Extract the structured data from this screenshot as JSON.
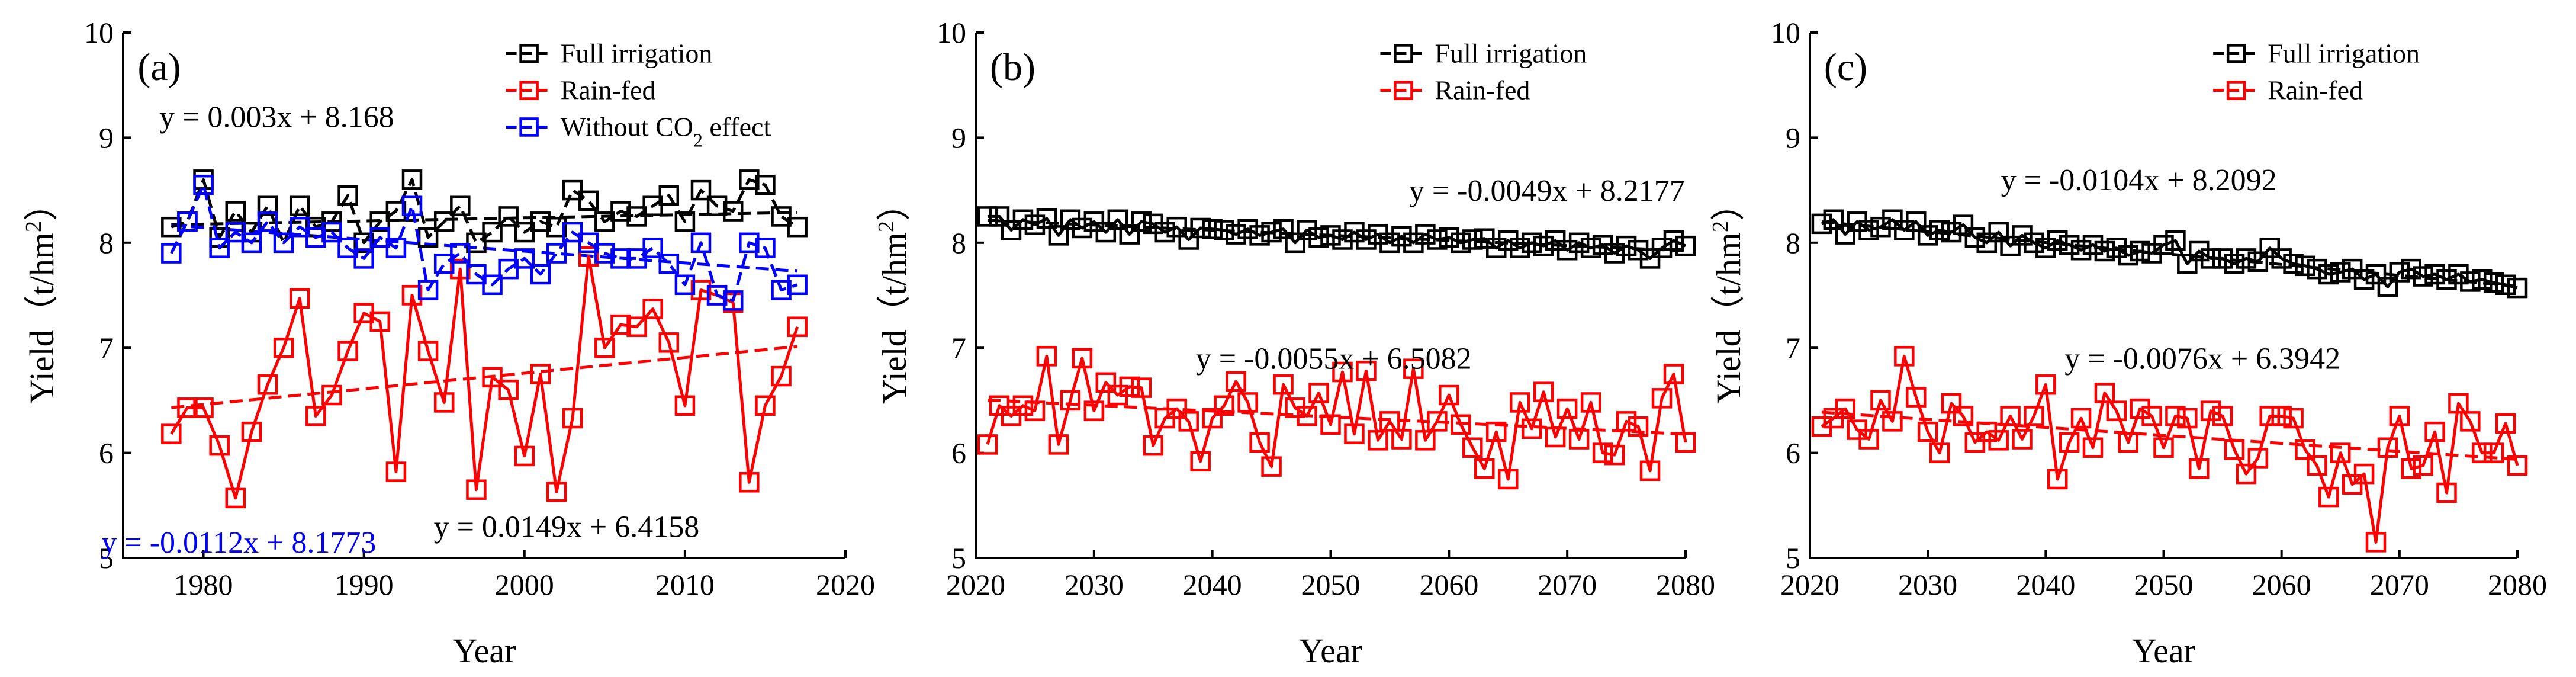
{
  "chart_data": [
    {
      "type": "line",
      "panel_label": "(a)",
      "xlabel": "Year",
      "ylabel": "Yield",
      "ylabel_unit_prefix": "（t/hm",
      "ylabel_unit_sup": "2",
      "ylabel_unit_suffix": "）",
      "xlim": [
        1975,
        2020
      ],
      "ylim": [
        5,
        10
      ],
      "xticks": [
        1980,
        1990,
        2000,
        2010,
        2020
      ],
      "yticks": [
        5,
        6,
        7,
        8,
        9,
        10
      ],
      "legend": [
        {
          "label": "Full irrigation",
          "color": "#000000"
        },
        {
          "label": "Rain-fed",
          "color": "#ff0000"
        },
        {
          "label_prefix": "Without CO",
          "label_sub": "2",
          "label_suffix": " effect",
          "color": "#0000ff"
        }
      ],
      "x": [
        1978,
        1979,
        1980,
        1981,
        1982,
        1983,
        1984,
        1985,
        1986,
        1987,
        1988,
        1989,
        1990,
        1991,
        1992,
        1993,
        1994,
        1995,
        1996,
        1997,
        1998,
        1999,
        2000,
        2001,
        2002,
        2003,
        2004,
        2005,
        2006,
        2007,
        2008,
        2009,
        2010,
        2011,
        2012,
        2013,
        2014,
        2015,
        2016,
        2017
      ],
      "series": [
        {
          "name": "Full irrigation",
          "color": "#000000",
          "line": "dash",
          "values": [
            8.15,
            8.2,
            8.6,
            8.05,
            8.3,
            8.1,
            8.35,
            8.0,
            8.35,
            8.15,
            8.2,
            8.45,
            8.0,
            8.2,
            8.3,
            8.6,
            8.05,
            8.2,
            8.35,
            8.0,
            8.1,
            8.25,
            8.1,
            8.2,
            8.15,
            8.5,
            8.4,
            8.2,
            8.3,
            8.25,
            8.35,
            8.45,
            8.2,
            8.5,
            8.35,
            8.3,
            8.6,
            8.55,
            8.25,
            8.15
          ]
        },
        {
          "name": "Rain-fed",
          "color": "#ff0000",
          "line": "solid",
          "values": [
            6.18,
            6.43,
            6.43,
            6.07,
            5.57,
            6.2,
            6.65,
            7.0,
            7.47,
            6.35,
            6.55,
            6.97,
            7.33,
            7.25,
            5.82,
            7.5,
            6.97,
            6.48,
            7.75,
            5.65,
            6.72,
            6.6,
            5.97,
            6.75,
            5.63,
            6.33,
            7.87,
            7.0,
            7.22,
            7.2,
            7.37,
            7.05,
            6.45,
            7.55,
            7.5,
            7.43,
            5.72,
            6.45,
            6.73,
            7.2
          ]
        },
        {
          "name": "Without CO2 effect",
          "color": "#0000ff",
          "line": "dash",
          "values": [
            7.9,
            8.2,
            8.55,
            7.95,
            8.1,
            8.0,
            8.2,
            8.0,
            8.15,
            8.05,
            8.1,
            7.95,
            7.85,
            8.05,
            7.95,
            8.35,
            7.55,
            7.8,
            7.9,
            7.7,
            7.6,
            7.75,
            7.85,
            7.7,
            7.9,
            8.1,
            8.0,
            7.9,
            7.85,
            7.85,
            7.95,
            7.8,
            7.6,
            8.0,
            7.5,
            7.45,
            8.0,
            7.95,
            7.55,
            7.6
          ]
        }
      ],
      "trend_lines": [
        {
          "series": "Full irrigation",
          "slope": 0.003,
          "intercept": 8.168
        },
        {
          "series": "Rain-fed",
          "slope": 0.0149,
          "intercept": 6.4158
        },
        {
          "series": "Without CO2 effect",
          "slope": -0.0112,
          "intercept": 8.1773
        }
      ],
      "equations": [
        {
          "text": "y = 0.003x + 8.168",
          "color": "#000000"
        },
        {
          "text": "y = -0.0112x + 8.1773",
          "color": "#0000ff"
        },
        {
          "text": "y = 0.0149x + 6.4158",
          "color": "#000000"
        }
      ]
    },
    {
      "type": "line",
      "panel_label": "(b)",
      "xlabel": "Year",
      "ylabel": "Yield",
      "ylabel_unit_prefix": "（t/hm",
      "ylabel_unit_sup": "2",
      "ylabel_unit_suffix": "）",
      "xlim": [
        2020,
        2080
      ],
      "ylim": [
        5,
        10
      ],
      "xticks": [
        2020,
        2030,
        2040,
        2050,
        2060,
        2070,
        2080
      ],
      "yticks": [
        5,
        6,
        7,
        8,
        9,
        10
      ],
      "legend": [
        {
          "label": "Full irrigation",
          "color": "#000000"
        },
        {
          "label": "Rain-fed",
          "color": "#ff0000"
        }
      ],
      "x": [
        2021,
        2022,
        2023,
        2024,
        2025,
        2026,
        2027,
        2028,
        2029,
        2030,
        2031,
        2032,
        2033,
        2034,
        2035,
        2036,
        2037,
        2038,
        2039,
        2040,
        2041,
        2042,
        2043,
        2044,
        2045,
        2046,
        2047,
        2048,
        2049,
        2050,
        2051,
        2052,
        2053,
        2054,
        2055,
        2056,
        2057,
        2058,
        2059,
        2060,
        2061,
        2062,
        2063,
        2064,
        2065,
        2066,
        2067,
        2068,
        2069,
        2070,
        2071,
        2072,
        2073,
        2074,
        2075,
        2076,
        2077,
        2078,
        2079,
        2080
      ],
      "series": [
        {
          "name": "Full irrigation",
          "color": "#000000",
          "line": "solid",
          "values": [
            8.25,
            8.25,
            8.12,
            8.22,
            8.17,
            8.23,
            8.07,
            8.22,
            8.14,
            8.2,
            8.1,
            8.22,
            8.08,
            8.2,
            8.18,
            8.1,
            8.15,
            8.03,
            8.14,
            8.13,
            8.12,
            8.08,
            8.13,
            8.07,
            8.1,
            8.13,
            8.0,
            8.12,
            8.05,
            8.07,
            8.03,
            8.1,
            8.03,
            8.08,
            8.0,
            8.06,
            8.0,
            8.08,
            8.03,
            8.05,
            8.0,
            8.03,
            8.04,
            7.95,
            8.02,
            7.95,
            8.0,
            7.97,
            8.02,
            7.93,
            8.0,
            7.95,
            7.98,
            7.9,
            7.97,
            7.93,
            7.85,
            7.95,
            8.02,
            7.97
          ]
        },
        {
          "name": "Rain-fed",
          "color": "#ff0000",
          "line": "solid",
          "values": [
            6.08,
            6.45,
            6.35,
            6.45,
            6.4,
            6.92,
            6.08,
            6.5,
            6.9,
            6.4,
            6.67,
            6.55,
            6.63,
            6.62,
            6.07,
            6.33,
            6.42,
            6.3,
            5.92,
            6.33,
            6.45,
            6.68,
            6.48,
            6.1,
            5.87,
            6.65,
            6.43,
            6.35,
            6.57,
            6.27,
            6.77,
            6.18,
            6.78,
            6.12,
            6.3,
            6.13,
            6.8,
            6.12,
            6.3,
            6.55,
            6.27,
            6.05,
            5.85,
            6.2,
            5.75,
            6.48,
            6.23,
            6.58,
            6.15,
            6.42,
            6.13,
            6.48,
            6.0,
            5.98,
            6.3,
            6.25,
            5.83,
            6.52,
            6.75,
            6.1
          ]
        }
      ],
      "trend_lines": [
        {
          "series": "Full irrigation",
          "slope": -0.0049,
          "intercept": 8.2177
        },
        {
          "series": "Rain-fed",
          "slope": -0.0055,
          "intercept": 6.5082
        }
      ],
      "equations": [
        {
          "text": "y = -0.0049x + 8.2177",
          "color": "#000000"
        },
        {
          "text": "y = -0.0055x + 6.5082",
          "color": "#000000"
        }
      ]
    },
    {
      "type": "line",
      "panel_label": "(c)",
      "xlabel": "Year",
      "ylabel": "Yield",
      "ylabel_unit_prefix": "（t/hm",
      "ylabel_unit_sup": "2",
      "ylabel_unit_suffix": "）",
      "xlim": [
        2020,
        2080
      ],
      "ylim": [
        5,
        10
      ],
      "xticks": [
        2020,
        2030,
        2040,
        2050,
        2060,
        2070,
        2080
      ],
      "yticks": [
        5,
        6,
        7,
        8,
        9,
        10
      ],
      "legend": [
        {
          "label": "Full irrigation",
          "color": "#000000"
        },
        {
          "label": "Rain-fed",
          "color": "#ff0000"
        }
      ],
      "x": [
        2021,
        2022,
        2023,
        2024,
        2025,
        2026,
        2027,
        2028,
        2029,
        2030,
        2031,
        2032,
        2033,
        2034,
        2035,
        2036,
        2037,
        2038,
        2039,
        2040,
        2041,
        2042,
        2043,
        2044,
        2045,
        2046,
        2047,
        2048,
        2049,
        2050,
        2051,
        2052,
        2053,
        2054,
        2055,
        2056,
        2057,
        2058,
        2059,
        2060,
        2061,
        2062,
        2063,
        2064,
        2065,
        2066,
        2067,
        2068,
        2069,
        2070,
        2071,
        2072,
        2073,
        2074,
        2075,
        2076,
        2077,
        2078,
        2079,
        2080
      ],
      "series": [
        {
          "name": "Full irrigation",
          "color": "#000000",
          "line": "solid",
          "values": [
            8.18,
            8.22,
            8.08,
            8.2,
            8.12,
            8.15,
            8.22,
            8.12,
            8.2,
            8.07,
            8.12,
            8.1,
            8.17,
            8.05,
            8.0,
            8.1,
            7.97,
            8.07,
            8.0,
            7.95,
            8.02,
            7.98,
            7.93,
            7.98,
            7.92,
            7.95,
            7.88,
            7.92,
            7.9,
            7.98,
            8.02,
            7.8,
            7.92,
            7.85,
            7.85,
            7.8,
            7.85,
            7.82,
            7.95,
            7.85,
            7.8,
            7.78,
            7.75,
            7.7,
            7.72,
            7.75,
            7.65,
            7.7,
            7.58,
            7.72,
            7.75,
            7.68,
            7.7,
            7.65,
            7.7,
            7.63,
            7.65,
            7.62,
            7.6,
            7.57
          ]
        },
        {
          "name": "Rain-fed",
          "color": "#ff0000",
          "line": "solid",
          "values": [
            6.25,
            6.33,
            6.42,
            6.22,
            6.13,
            6.5,
            6.3,
            6.92,
            6.53,
            6.2,
            6.0,
            6.47,
            6.35,
            6.1,
            6.2,
            6.12,
            6.35,
            6.13,
            6.35,
            6.65,
            5.75,
            6.1,
            6.33,
            6.05,
            6.57,
            6.4,
            6.1,
            6.42,
            6.35,
            6.05,
            6.35,
            6.33,
            5.85,
            6.4,
            6.35,
            6.03,
            5.8,
            5.95,
            6.35,
            6.35,
            6.33,
            6.03,
            5.88,
            5.58,
            6.0,
            5.7,
            5.8,
            5.15,
            6.05,
            6.35,
            5.85,
            5.88,
            6.2,
            5.62,
            6.47,
            6.3,
            6.0,
            6.0,
            6.28,
            5.88
          ]
        }
      ],
      "trend_lines": [
        {
          "series": "Full irrigation",
          "slope": -0.0104,
          "intercept": 8.2092
        },
        {
          "series": "Rain-fed",
          "slope": -0.0076,
          "intercept": 6.3942
        }
      ],
      "equations": [
        {
          "text": "y = -0.0104x + 8.2092",
          "color": "#000000"
        },
        {
          "text": "y = -0.0076x + 6.3942",
          "color": "#000000"
        }
      ]
    }
  ]
}
